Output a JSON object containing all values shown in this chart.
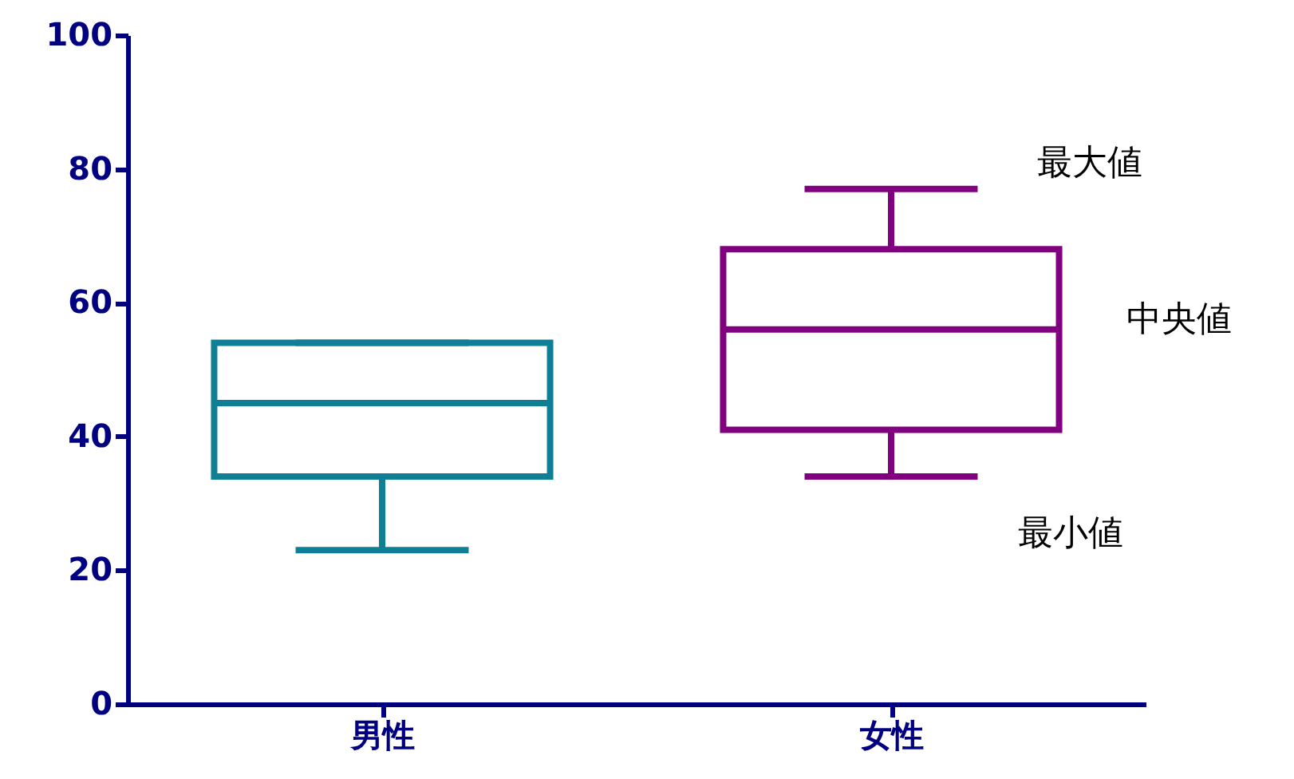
{
  "chart_data": {
    "type": "box",
    "categories": [
      "男性",
      "女性"
    ],
    "boxes": [
      {
        "low": 23,
        "q1": 34,
        "median": 45,
        "q3": 54,
        "high": 54
      },
      {
        "low": 34,
        "q1": 41,
        "median": 56,
        "q3": 68,
        "high": 77
      }
    ],
    "colors": [
      "#0e7f95",
      "#800080"
    ],
    "ylim": [
      0,
      100
    ],
    "yticks": [
      0,
      20,
      40,
      60,
      80,
      100
    ],
    "grid": false,
    "annotations": [
      "最大値",
      "中央値",
      "最小値"
    ]
  }
}
